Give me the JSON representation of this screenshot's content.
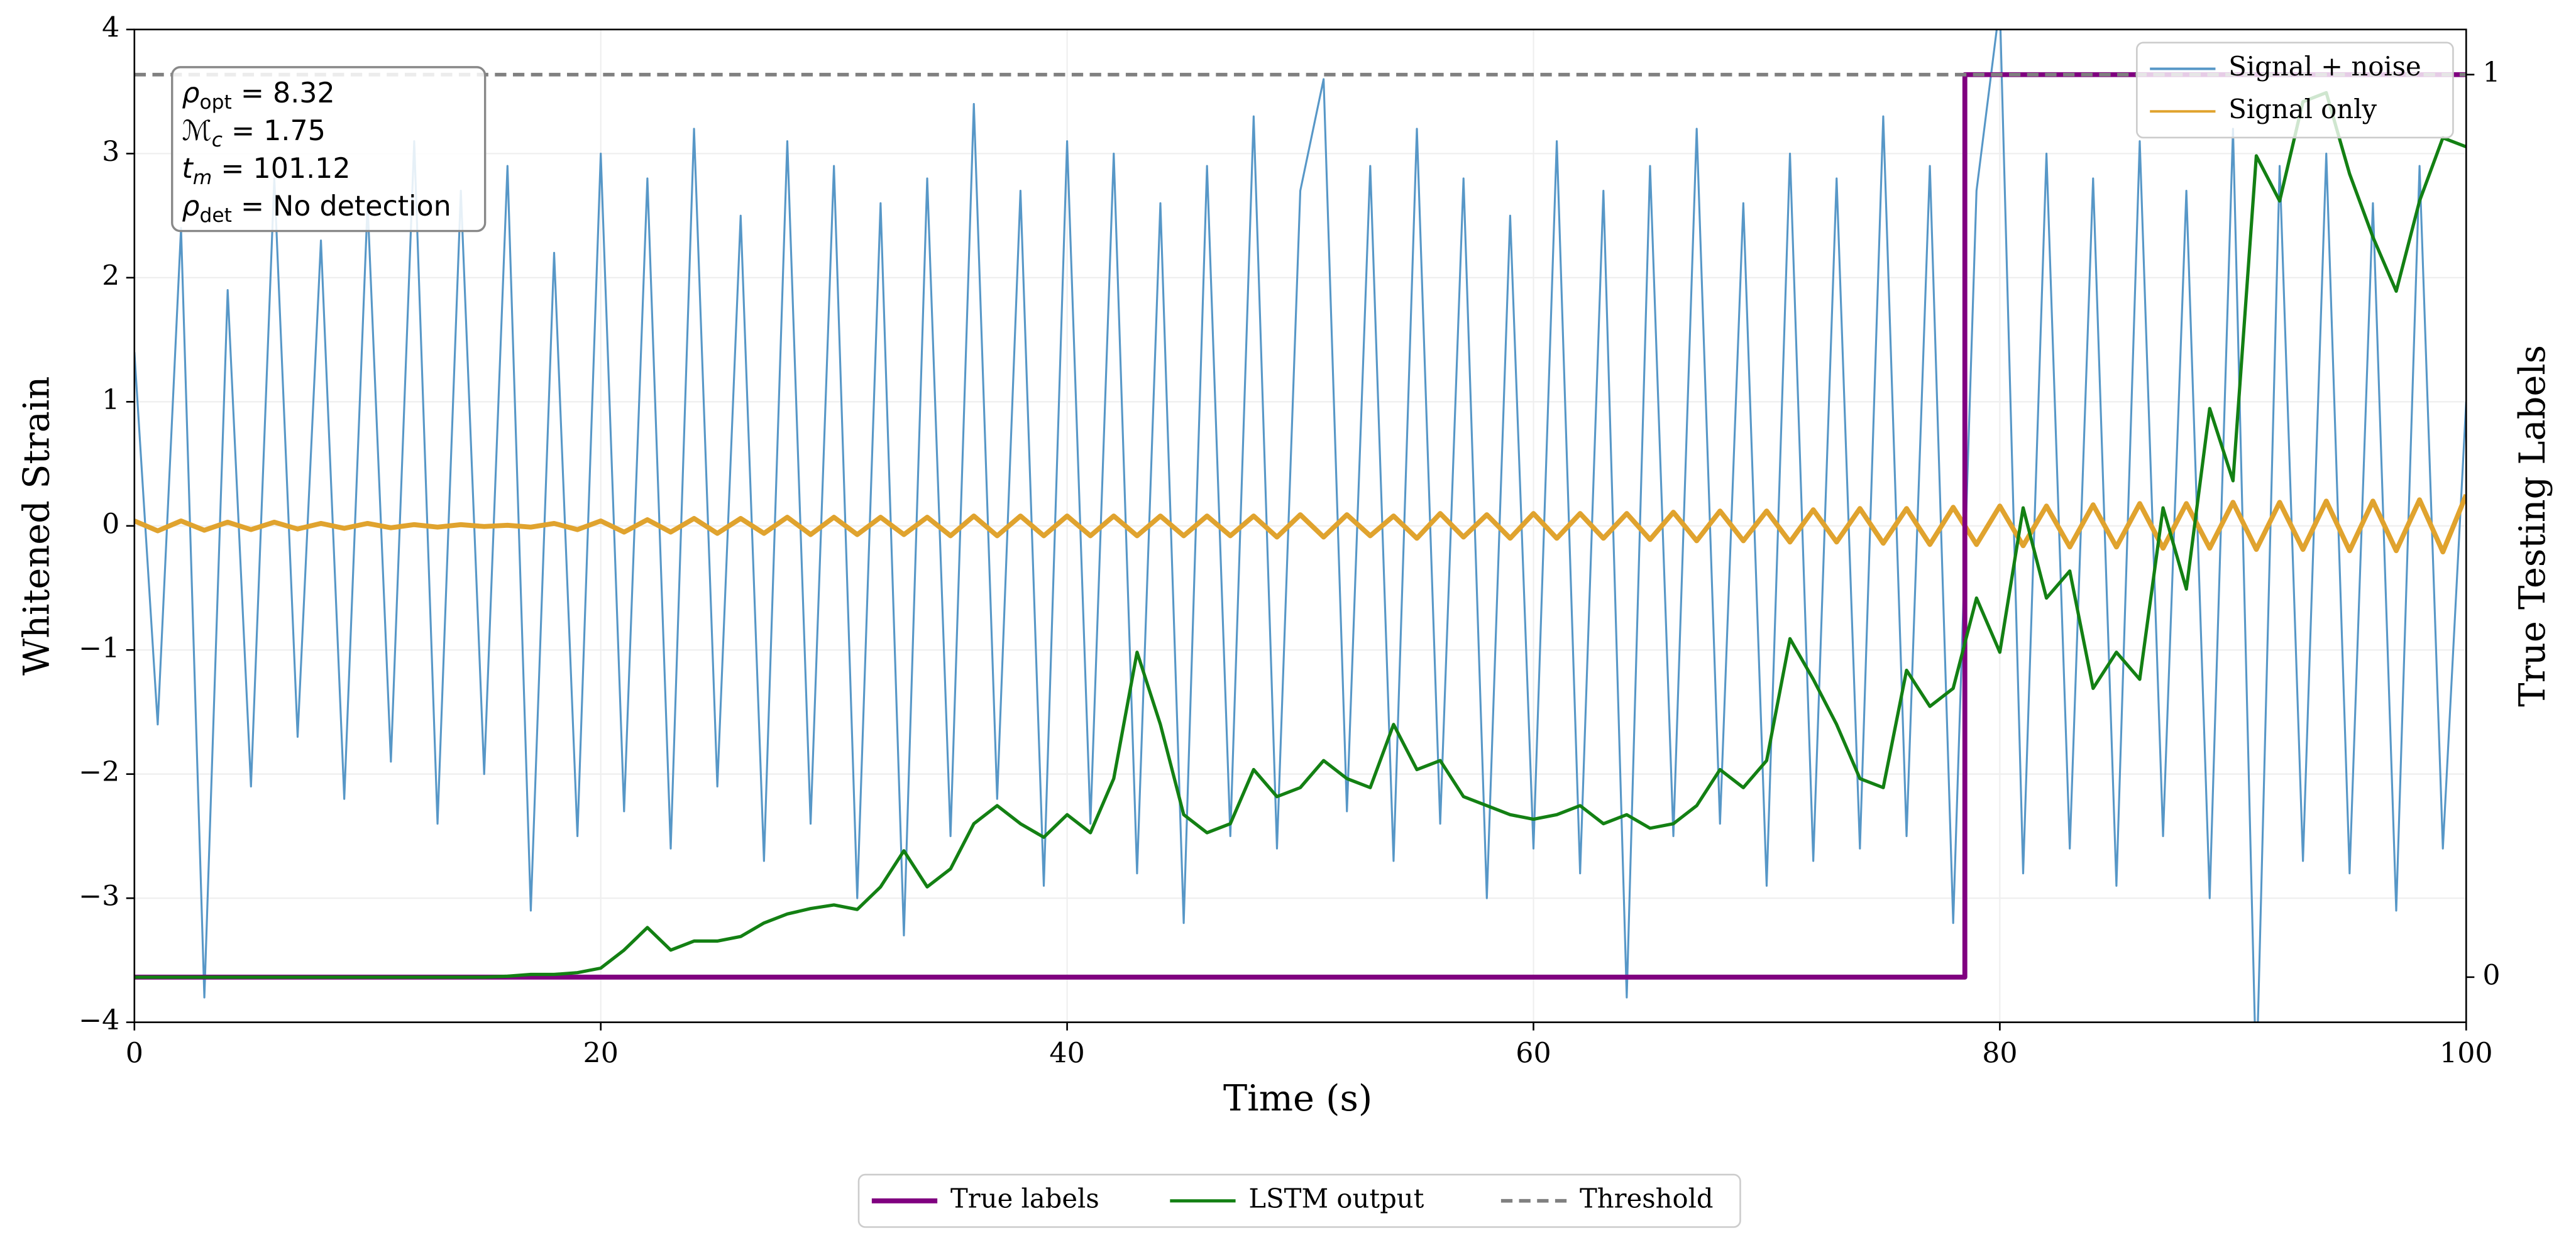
{
  "chart_data": {
    "type": "line",
    "xlabel": "Time (s)",
    "ylabel": "Whitened Strain",
    "y2label": "True Testing Labels",
    "xlim": [
      0,
      100
    ],
    "ylim": [
      -4,
      4
    ],
    "y2lim": [
      -0.05,
      1.05
    ],
    "xticks": [
      0,
      20,
      40,
      60,
      80,
      100
    ],
    "yticks": [
      {
        "value": -4,
        "label": "−4"
      },
      {
        "value": -3,
        "label": "−3"
      },
      {
        "value": -2,
        "label": "−2"
      },
      {
        "value": -1,
        "label": "−1"
      },
      0,
      1,
      2,
      3,
      4
    ],
    "y2ticks": [
      0,
      1
    ],
    "grid": true,
    "annotation": [
      [
        "ρ",
        "opt",
        " = 8.32"
      ],
      [
        "ℳ",
        "c",
        " = 1.75"
      ],
      [
        "t",
        "m",
        " = 101.12"
      ],
      [
        "ρ",
        "det",
        " = No detection"
      ]
    ],
    "x": [
      0,
      1,
      2,
      3,
      4,
      5,
      6,
      7,
      8,
      9,
      10,
      11,
      12,
      13,
      14,
      15,
      16,
      17,
      18,
      19,
      20,
      21,
      22,
      23,
      24,
      25,
      26,
      27,
      28,
      29,
      30,
      31,
      32,
      33,
      34,
      35,
      36,
      37,
      38,
      39,
      40,
      41,
      42,
      43,
      44,
      45,
      46,
      47,
      48,
      49,
      50,
      51,
      52,
      53,
      54,
      55,
      56,
      57,
      58,
      59,
      60,
      61,
      62,
      63,
      64,
      65,
      66,
      67,
      68,
      69,
      70,
      71,
      72,
      73,
      74,
      75,
      76,
      77,
      78,
      79,
      80,
      81,
      82,
      83,
      84,
      85,
      86,
      87,
      88,
      89,
      90,
      91,
      92,
      93,
      94,
      95,
      96,
      97,
      98,
      99,
      100
    ],
    "series": [
      {
        "name": "Signal + noise",
        "color": "#5797c7",
        "width": 1.2,
        "legend": "upper right",
        "values": [
          1.4,
          -1.6,
          2.4,
          -3.8,
          1.9,
          -2.1,
          2.8,
          -1.7,
          2.3,
          -2.2,
          2.6,
          -1.9,
          3.1,
          -2.4,
          2.7,
          -2.0,
          2.9,
          -3.1,
          2.2,
          -2.5,
          3.0,
          -2.3,
          2.8,
          -2.6,
          3.2,
          -2.1,
          2.5,
          -2.7,
          3.1,
          -2.4,
          2.9,
          -3.0,
          2.6,
          -3.3,
          2.8,
          -2.5,
          3.4,
          -2.2,
          2.7,
          -2.9,
          3.1,
          -2.4,
          3.0,
          -2.8,
          2.6,
          -3.2,
          2.9,
          -2.5,
          3.3,
          -2.6,
          2.7,
          3.6,
          -2.3,
          2.9,
          -2.7,
          3.2,
          -2.4,
          2.8,
          -3.0,
          2.5,
          -2.6,
          3.1,
          -2.8,
          2.7,
          -3.8,
          2.9,
          -2.5,
          3.2,
          -2.4,
          2.6,
          -2.9,
          3.0,
          -2.7,
          2.8,
          -2.6,
          3.3,
          -2.5,
          2.9,
          -3.2,
          2.7,
          4.2,
          -2.8,
          3.0,
          -2.6,
          2.8,
          -2.9,
          3.1,
          -2.5,
          2.7,
          -3.0,
          3.2,
          -4.5,
          2.9,
          -2.7,
          3.0,
          -2.8,
          2.6,
          -3.1,
          2.9,
          -2.6,
          1.0
        ]
      },
      {
        "name": "Signal only",
        "color": "#e0a32e",
        "width": 3,
        "legend": "upper right",
        "values": [
          0.04,
          -0.04,
          0.04,
          -0.035,
          0.03,
          -0.03,
          0.03,
          -0.025,
          0.02,
          -0.02,
          0.02,
          -0.015,
          0.01,
          -0.01,
          0.01,
          -0.005,
          0.005,
          -0.01,
          0.02,
          -0.03,
          0.04,
          -0.05,
          0.05,
          -0.05,
          0.06,
          -0.06,
          0.06,
          -0.06,
          0.07,
          -0.07,
          0.07,
          -0.07,
          0.07,
          -0.07,
          0.07,
          -0.08,
          0.08,
          -0.08,
          0.08,
          -0.08,
          0.08,
          -0.08,
          0.08,
          -0.08,
          0.08,
          -0.08,
          0.08,
          -0.08,
          0.08,
          -0.09,
          0.09,
          -0.09,
          0.09,
          -0.08,
          0.08,
          -0.1,
          0.1,
          -0.09,
          0.09,
          -0.1,
          0.1,
          -0.1,
          0.1,
          -0.1,
          0.1,
          -0.11,
          0.11,
          -0.12,
          0.12,
          -0.12,
          0.12,
          -0.13,
          0.13,
          -0.13,
          0.14,
          -0.14,
          0.14,
          -0.15,
          0.15,
          -0.15,
          0.16,
          -0.16,
          0.16,
          -0.17,
          0.17,
          -0.17,
          0.18,
          -0.18,
          0.18,
          -0.18,
          0.19,
          -0.19,
          0.19,
          -0.19,
          0.2,
          -0.2,
          0.2,
          -0.2,
          0.21,
          -0.21,
          0.25
        ]
      },
      {
        "name": "True labels",
        "color": "#800080",
        "width": 3,
        "axis": "y2",
        "legend": "below",
        "x": [
          0,
          78.5,
          78.5,
          100
        ],
        "values": [
          0,
          0,
          1,
          1
        ]
      },
      {
        "name": "LSTM output",
        "color": "#138013",
        "width": 2,
        "axis": "y2",
        "legend": "below",
        "values": [
          0,
          0,
          0,
          0,
          0,
          0,
          0,
          0,
          0,
          0,
          0,
          0,
          0,
          0,
          0,
          0,
          0.001,
          0.003,
          0.003,
          0.005,
          0.01,
          0.03,
          0.055,
          0.03,
          0.04,
          0.04,
          0.045,
          0.06,
          0.07,
          0.076,
          0.08,
          0.075,
          0.1,
          0.14,
          0.1,
          0.12,
          0.17,
          0.19,
          0.17,
          0.155,
          0.18,
          0.16,
          0.22,
          0.36,
          0.28,
          0.18,
          0.16,
          0.17,
          0.23,
          0.2,
          0.21,
          0.24,
          0.22,
          0.21,
          0.28,
          0.23,
          0.24,
          0.2,
          0.19,
          0.18,
          0.175,
          0.18,
          0.19,
          0.17,
          0.18,
          0.165,
          0.17,
          0.19,
          0.23,
          0.21,
          0.24,
          0.375,
          0.33,
          0.28,
          0.22,
          0.21,
          0.34,
          0.3,
          0.32,
          0.42,
          0.36,
          0.52,
          0.42,
          0.45,
          0.32,
          0.36,
          0.33,
          0.52,
          0.43,
          0.63,
          0.55,
          0.91,
          0.86,
          0.97,
          0.98,
          0.89,
          0.82,
          0.76,
          0.86,
          0.93,
          0.92
        ]
      },
      {
        "name": "Threshold",
        "color": "#808080",
        "width": 2.2,
        "dash": true,
        "axis": "y2",
        "legend": "below",
        "x": [
          0,
          100
        ],
        "values": [
          1,
          1
        ]
      }
    ]
  }
}
